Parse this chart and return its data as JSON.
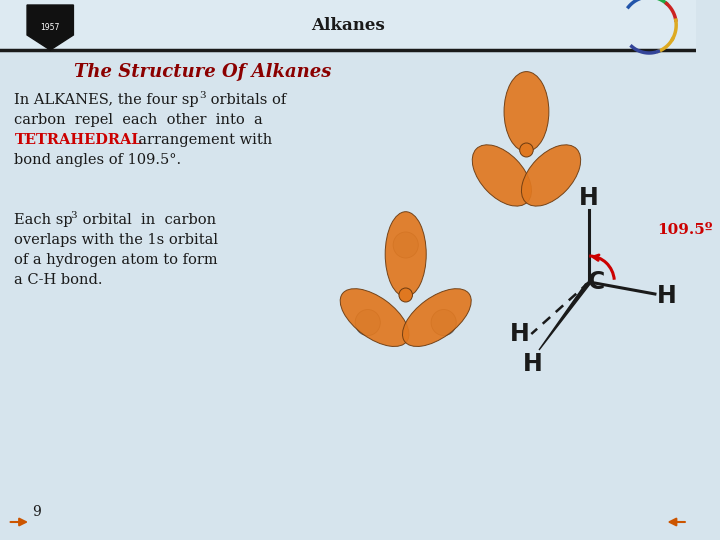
{
  "title": "Alkanes",
  "subtitle": "The Structure Of Alkanes",
  "subtitle_color": "#8B0000",
  "bg_color": "#d6e4ed",
  "header_bg": "#ccdde8",
  "header_line_color": "#1a1a1a",
  "body_text_color": "#1a1a1a",
  "tetrahedral_color": "#cc0000",
  "page_number": "9",
  "orange_color": "#E07820",
  "gray_color": "#A8A8A8",
  "angle_label": "109.5º"
}
